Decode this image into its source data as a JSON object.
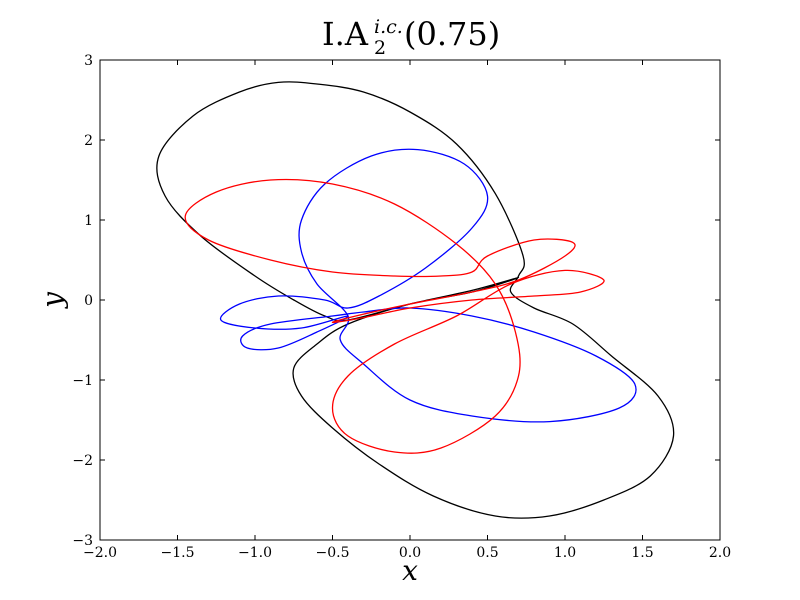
{
  "chart_data": {
    "type": "line",
    "title_main": "I.A",
    "title_superscript": "i.c.",
    "title_subscript": "2",
    "title_suffix": "(0.75)",
    "xlabel": "x",
    "ylabel": "y",
    "xlim": [
      -2.0,
      2.0
    ],
    "ylim": [
      -3,
      3
    ],
    "xticks": [
      -2.0,
      -1.5,
      -1.0,
      -0.5,
      0.0,
      0.5,
      1.0,
      1.5,
      2.0
    ],
    "xtick_labels": [
      "−2.0",
      "−1.5",
      "−1.0",
      "−0.5",
      "0.0",
      "0.5",
      "1.0",
      "1.5",
      "2.0"
    ],
    "yticks": [
      -3,
      -2,
      -1,
      0,
      1,
      2,
      3
    ],
    "ytick_labels": [
      "−3",
      "−2",
      "−1",
      "0",
      "1",
      "2",
      "3"
    ],
    "grid": false,
    "series": [
      {
        "color": "#000000",
        "points": [
          [
            0.73,
            0.55
          ],
          [
            0.55,
            1.33
          ],
          [
            0.3,
            1.95
          ],
          [
            0.0,
            2.35
          ],
          [
            -0.3,
            2.6
          ],
          [
            -0.6,
            2.7
          ],
          [
            -0.85,
            2.72
          ],
          [
            -1.1,
            2.6
          ],
          [
            -1.4,
            2.3
          ],
          [
            -1.62,
            1.8
          ],
          [
            -1.58,
            1.3
          ],
          [
            -1.35,
            0.8
          ],
          [
            -1.0,
            0.3
          ],
          [
            -0.75,
            0.0
          ],
          [
            -0.55,
            -0.2
          ],
          [
            -0.4,
            -0.25
          ],
          [
            0.0,
            -0.05
          ],
          [
            0.4,
            0.12
          ],
          [
            0.7,
            0.28
          ],
          [
            0.4,
            0.1
          ],
          [
            0.0,
            -0.05
          ],
          [
            -0.4,
            -0.3
          ],
          [
            -0.6,
            -0.55
          ],
          [
            -0.75,
            -0.85
          ],
          [
            -0.7,
            -1.2
          ],
          [
            -0.5,
            -1.6
          ],
          [
            -0.2,
            -2.05
          ],
          [
            0.15,
            -2.45
          ],
          [
            0.55,
            -2.7
          ],
          [
            0.9,
            -2.7
          ],
          [
            1.25,
            -2.5
          ],
          [
            1.55,
            -2.2
          ],
          [
            1.7,
            -1.7
          ],
          [
            1.6,
            -1.2
          ],
          [
            1.3,
            -0.7
          ],
          [
            1.05,
            -0.3
          ],
          [
            0.8,
            -0.1
          ],
          [
            0.65,
            0.1
          ],
          [
            0.7,
            0.3
          ],
          [
            0.73,
            0.55
          ]
        ]
      },
      {
        "color": "#0000ff",
        "points": [
          [
            -0.4,
            -0.2
          ],
          [
            -0.6,
            -0.4
          ],
          [
            -0.85,
            -0.6
          ],
          [
            -1.05,
            -0.6
          ],
          [
            -1.08,
            -0.45
          ],
          [
            -0.9,
            -0.3
          ],
          [
            -0.5,
            -0.2
          ],
          [
            -0.3,
            -0.15
          ],
          [
            0.0,
            -0.1
          ],
          [
            0.4,
            -0.2
          ],
          [
            0.8,
            -0.4
          ],
          [
            1.2,
            -0.7
          ],
          [
            1.45,
            -1.05
          ],
          [
            1.35,
            -1.35
          ],
          [
            0.9,
            -1.52
          ],
          [
            0.4,
            -1.45
          ],
          [
            0.0,
            -1.25
          ],
          [
            -0.3,
            -0.8
          ],
          [
            -0.45,
            -0.5
          ],
          [
            -0.4,
            -0.2
          ],
          [
            -0.6,
            0.2
          ],
          [
            -0.7,
            0.6
          ],
          [
            -0.7,
            1.0
          ],
          [
            -0.55,
            1.45
          ],
          [
            -0.25,
            1.8
          ],
          [
            0.05,
            1.88
          ],
          [
            0.35,
            1.7
          ],
          [
            0.5,
            1.3
          ],
          [
            0.4,
            0.9
          ],
          [
            0.1,
            0.4
          ],
          [
            -0.2,
            0.05
          ],
          [
            -0.4,
            -0.1
          ],
          [
            -0.55,
            0.0
          ],
          [
            -0.85,
            0.05
          ],
          [
            -1.1,
            -0.05
          ],
          [
            -1.22,
            -0.25
          ],
          [
            -1.0,
            -0.35
          ],
          [
            -0.7,
            -0.35
          ],
          [
            -0.4,
            -0.2
          ]
        ]
      },
      {
        "color": "#ff0000",
        "points": [
          [
            0.65,
            0.2
          ],
          [
            1.0,
            0.37
          ],
          [
            1.25,
            0.25
          ],
          [
            1.1,
            0.1
          ],
          [
            0.8,
            0.05
          ],
          [
            0.4,
            0.0
          ],
          [
            0.0,
            -0.1
          ],
          [
            -0.3,
            -0.22
          ],
          [
            -0.5,
            -0.28
          ],
          [
            -0.35,
            -0.2
          ],
          [
            0.0,
            -0.05
          ],
          [
            0.4,
            0.1
          ],
          [
            0.7,
            0.25
          ],
          [
            1.0,
            0.55
          ],
          [
            1.05,
            0.72
          ],
          [
            0.8,
            0.75
          ],
          [
            0.5,
            0.55
          ],
          [
            0.4,
            0.35
          ],
          [
            0.2,
            0.3
          ],
          [
            -0.1,
            0.3
          ],
          [
            -0.5,
            0.35
          ],
          [
            -0.9,
            0.5
          ],
          [
            -1.3,
            0.75
          ],
          [
            -1.45,
            1.05
          ],
          [
            -1.25,
            1.35
          ],
          [
            -0.9,
            1.5
          ],
          [
            -0.5,
            1.45
          ],
          [
            -0.1,
            1.2
          ],
          [
            0.3,
            0.7
          ],
          [
            0.55,
            0.2
          ],
          [
            0.68,
            -0.4
          ],
          [
            0.7,
            -0.95
          ],
          [
            0.55,
            -1.45
          ],
          [
            0.2,
            -1.85
          ],
          [
            -0.1,
            -1.9
          ],
          [
            -0.4,
            -1.7
          ],
          [
            -0.5,
            -1.35
          ],
          [
            -0.4,
            -0.95
          ],
          [
            -0.1,
            -0.55
          ],
          [
            0.3,
            -0.2
          ],
          [
            0.65,
            0.2
          ]
        ]
      }
    ]
  }
}
